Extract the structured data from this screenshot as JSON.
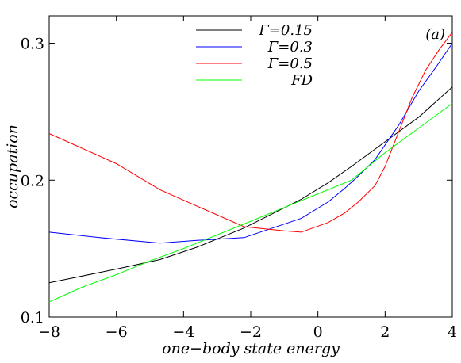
{
  "chart_data": {
    "type": "line",
    "title": "",
    "panel_label": "(a)",
    "xlabel": "one−body state energy",
    "ylabel": "occupation",
    "xlim": [
      -8,
      4
    ],
    "ylim": [
      0.1,
      0.32
    ],
    "x_ticks": [
      -8,
      -6,
      -4,
      -2,
      0,
      2,
      4
    ],
    "x_tick_labels": [
      "−8",
      "−6",
      "−4",
      "−2",
      "0",
      "2",
      "4"
    ],
    "y_ticks": [
      0.1,
      0.2,
      0.3
    ],
    "y_tick_labels": [
      "0.1",
      "0.2",
      "0.3"
    ],
    "grid": false,
    "legend_position": "top-center",
    "series": [
      {
        "name": "Γ=0.15",
        "color": "#000000",
        "points": [
          [
            -8,
            0.125
          ],
          [
            -6,
            0.135
          ],
          [
            -4.7,
            0.142
          ],
          [
            -3.6,
            0.151
          ],
          [
            -2.2,
            0.165
          ],
          [
            -0.5,
            0.186
          ],
          [
            0.3,
            0.198
          ],
          [
            1,
            0.21
          ],
          [
            2,
            0.228
          ],
          [
            3,
            0.246
          ],
          [
            4,
            0.268
          ]
        ]
      },
      {
        "name": "Γ=0.3",
        "color": "#0000ff",
        "points": [
          [
            -8,
            0.162
          ],
          [
            -6.5,
            0.158
          ],
          [
            -4.7,
            0.154
          ],
          [
            -3.6,
            0.156
          ],
          [
            -2.2,
            0.158
          ],
          [
            -0.5,
            0.172
          ],
          [
            0.3,
            0.184
          ],
          [
            0.8,
            0.194
          ],
          [
            1.2,
            0.203
          ],
          [
            1.7,
            0.215
          ],
          [
            2.4,
            0.24
          ],
          [
            3,
            0.265
          ],
          [
            3.5,
            0.282
          ],
          [
            4,
            0.3
          ]
        ]
      },
      {
        "name": "Γ=0.5",
        "color": "#ff0000",
        "points": [
          [
            -8,
            0.234
          ],
          [
            -6,
            0.212
          ],
          [
            -4.7,
            0.193
          ],
          [
            -3.6,
            0.181
          ],
          [
            -2.2,
            0.166
          ],
          [
            -1,
            0.163
          ],
          [
            -0.5,
            0.162
          ],
          [
            0.3,
            0.169
          ],
          [
            0.8,
            0.176
          ],
          [
            1.2,
            0.184
          ],
          [
            1.7,
            0.196
          ],
          [
            2,
            0.21
          ],
          [
            2.4,
            0.235
          ],
          [
            2.8,
            0.26
          ],
          [
            3.2,
            0.28
          ],
          [
            3.6,
            0.295
          ],
          [
            4,
            0.308
          ]
        ]
      },
      {
        "name": "FD",
        "color": "#00ff00",
        "points": [
          [
            -8,
            0.111
          ],
          [
            -7,
            0.122
          ],
          [
            -6,
            0.131
          ],
          [
            -5,
            0.141
          ],
          [
            -4,
            0.15
          ],
          [
            -3,
            0.16
          ],
          [
            -2,
            0.17
          ],
          [
            -1,
            0.18
          ],
          [
            0,
            0.19
          ],
          [
            1,
            0.2
          ],
          [
            2,
            0.22
          ],
          [
            3,
            0.238
          ],
          [
            4,
            0.256
          ]
        ]
      }
    ]
  }
}
